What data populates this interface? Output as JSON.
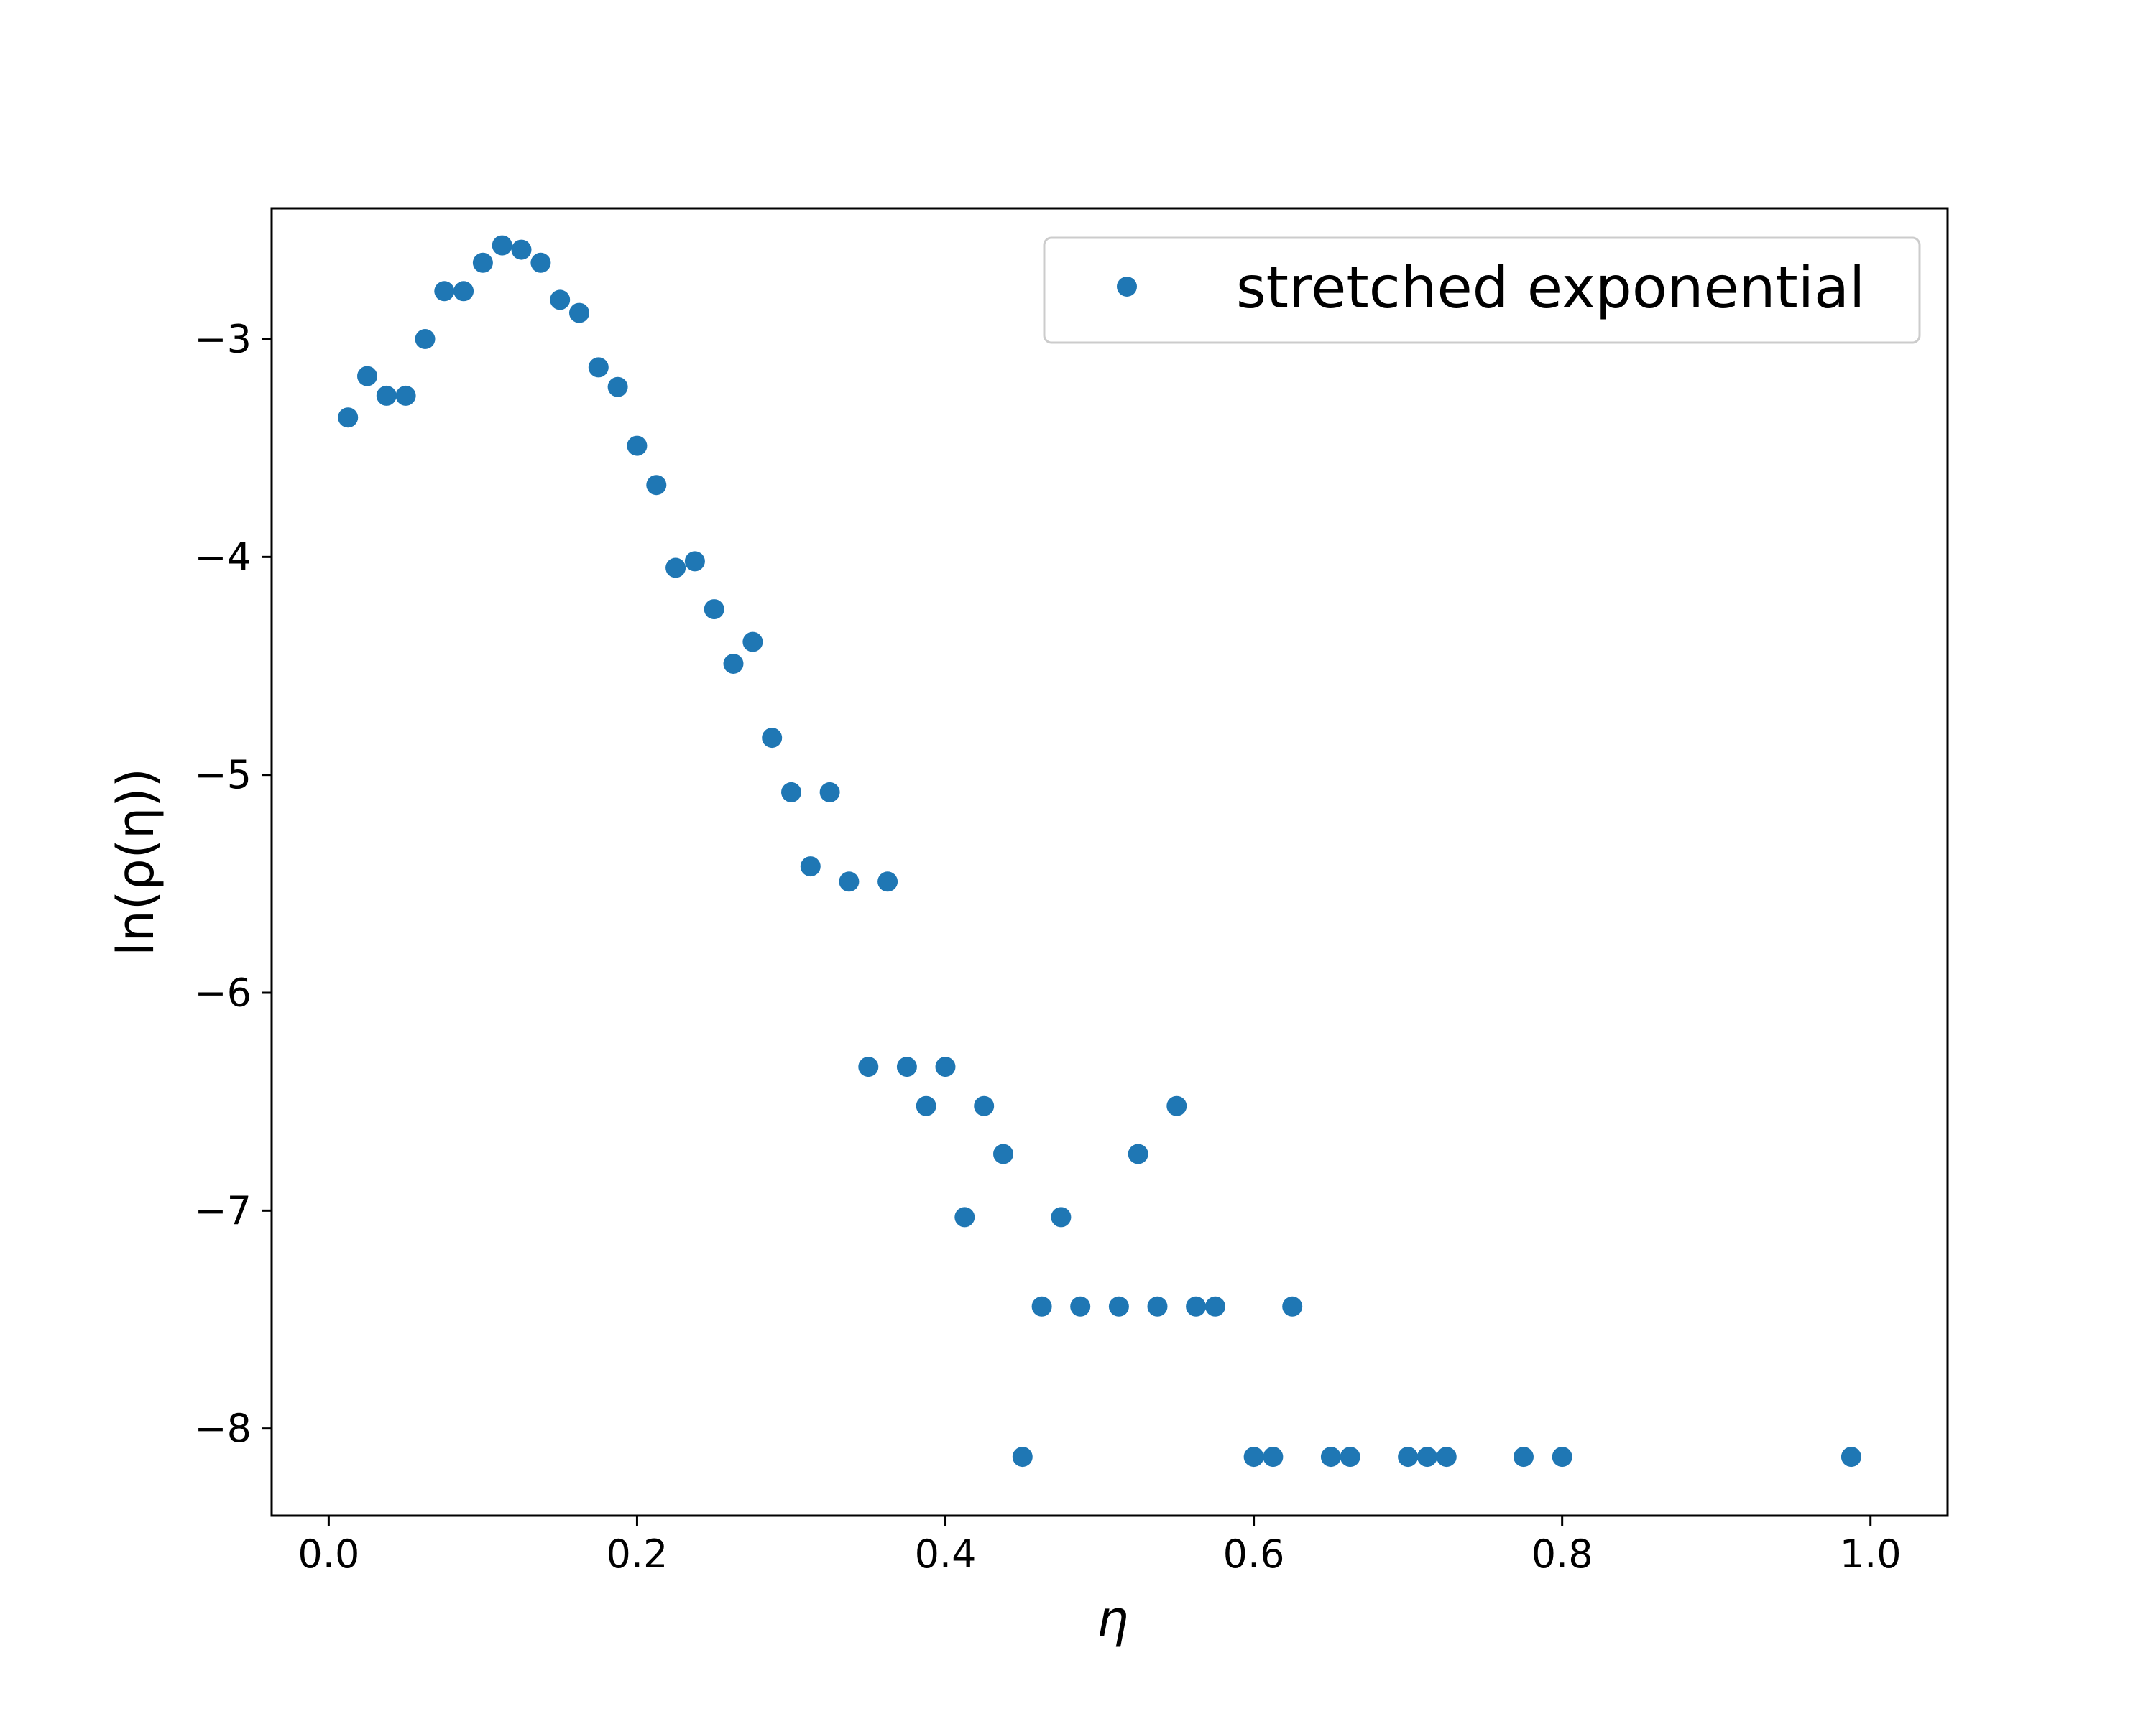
{
  "chart_data": {
    "type": "scatter",
    "xlabel": "η",
    "ylabel": "ln(ρ(η))",
    "xlim": [
      -0.037,
      1.05
    ],
    "ylim": [
      -8.4,
      -2.4
    ],
    "xticks": [
      0.0,
      0.2,
      0.4,
      0.6,
      0.8,
      1.0
    ],
    "xtick_labels": [
      "0.0",
      "0.2",
      "0.4",
      "0.6",
      "0.8",
      "1.0"
    ],
    "yticks": [
      -3,
      -4,
      -5,
      -6,
      -7,
      -8
    ],
    "ytick_labels": [
      "−3",
      "−4",
      "−5",
      "−6",
      "−7",
      "−8"
    ],
    "grid": false,
    "legend_position": "top-right",
    "color": "#1f77b4",
    "series": [
      {
        "name": "stretched exponential",
        "points": [
          {
            "x": 0.0125,
            "y": -3.36
          },
          {
            "x": 0.025,
            "y": -3.17
          },
          {
            "x": 0.0375,
            "y": -3.26
          },
          {
            "x": 0.05,
            "y": -3.26
          },
          {
            "x": 0.0625,
            "y": -3.0
          },
          {
            "x": 0.075,
            "y": -2.78
          },
          {
            "x": 0.0875,
            "y": -2.78
          },
          {
            "x": 0.1,
            "y": -2.65
          },
          {
            "x": 0.1125,
            "y": -2.57
          },
          {
            "x": 0.125,
            "y": -2.59
          },
          {
            "x": 0.1375,
            "y": -2.65
          },
          {
            "x": 0.15,
            "y": -2.82
          },
          {
            "x": 0.1625,
            "y": -2.88
          },
          {
            "x": 0.175,
            "y": -3.13
          },
          {
            "x": 0.1875,
            "y": -3.22
          },
          {
            "x": 0.2,
            "y": -3.49
          },
          {
            "x": 0.2125,
            "y": -3.67
          },
          {
            "x": 0.225,
            "y": -4.05
          },
          {
            "x": 0.2375,
            "y": -4.02
          },
          {
            "x": 0.25,
            "y": -4.24
          },
          {
            "x": 0.2625,
            "y": -4.49
          },
          {
            "x": 0.275,
            "y": -4.39
          },
          {
            "x": 0.2875,
            "y": -4.83
          },
          {
            "x": 0.3,
            "y": -5.08
          },
          {
            "x": 0.3125,
            "y": -5.42
          },
          {
            "x": 0.325,
            "y": -5.08
          },
          {
            "x": 0.3375,
            "y": -5.49
          },
          {
            "x": 0.35,
            "y": -6.34
          },
          {
            "x": 0.3625,
            "y": -5.49
          },
          {
            "x": 0.375,
            "y": -6.34
          },
          {
            "x": 0.3875,
            "y": -6.52
          },
          {
            "x": 0.4,
            "y": -6.34
          },
          {
            "x": 0.4125,
            "y": -7.03
          },
          {
            "x": 0.425,
            "y": -6.52
          },
          {
            "x": 0.4375,
            "y": -6.74
          },
          {
            "x": 0.45,
            "y": -8.13
          },
          {
            "x": 0.4625,
            "y": -7.44
          },
          {
            "x": 0.475,
            "y": -7.03
          },
          {
            "x": 0.4875,
            "y": -7.44
          },
          {
            "x": 0.5125,
            "y": -7.44
          },
          {
            "x": 0.525,
            "y": -6.74
          },
          {
            "x": 0.5375,
            "y": -7.44
          },
          {
            "x": 0.55,
            "y": -6.52
          },
          {
            "x": 0.5625,
            "y": -7.44
          },
          {
            "x": 0.575,
            "y": -7.44
          },
          {
            "x": 0.6,
            "y": -8.13
          },
          {
            "x": 0.6125,
            "y": -8.13
          },
          {
            "x": 0.625,
            "y": -7.44
          },
          {
            "x": 0.65,
            "y": -8.13
          },
          {
            "x": 0.6625,
            "y": -8.13
          },
          {
            "x": 0.7,
            "y": -8.13
          },
          {
            "x": 0.7125,
            "y": -8.13
          },
          {
            "x": 0.725,
            "y": -8.13
          },
          {
            "x": 0.775,
            "y": -8.13
          },
          {
            "x": 0.8,
            "y": -8.13
          },
          {
            "x": 0.9875,
            "y": -8.13
          }
        ]
      }
    ]
  }
}
